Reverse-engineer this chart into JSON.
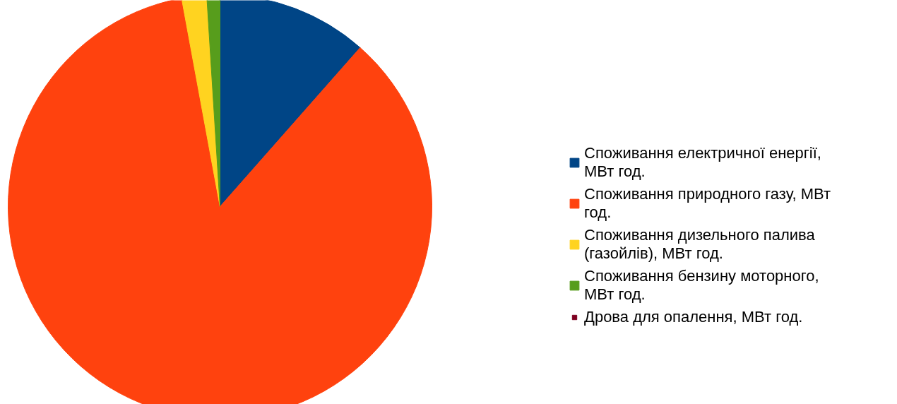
{
  "chart_data": {
    "type": "pie",
    "categories": [
      "Споживання електричної енергії, МВт год.",
      "Споживання природного газу, МВт год.",
      "Споживання дизельного палива (газойлів), МВт год.",
      "Споживання бензину моторного, МВт год.",
      "Дрова для опалення, МВт год."
    ],
    "values": [
      11.5,
      85.6,
      1.9,
      1.0,
      0.0
    ],
    "colors": [
      "#004586",
      "#ff420e",
      "#ffd320",
      "#579d1c",
      "#7e0021"
    ],
    "legend": "right"
  }
}
